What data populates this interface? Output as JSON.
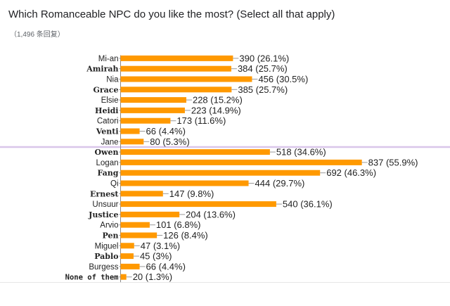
{
  "title": "Which Romanceable NPC do you like the most? (Select all that apply)",
  "response_count": "（1,496 条回复）",
  "colors": {
    "bar": "#ff9900",
    "leader": "#999999",
    "axis": "#888888",
    "divider": "#d9c6ea",
    "bottom_border": "#e6e6e6"
  },
  "chart_data": {
    "type": "bar",
    "orientation": "horizontal",
    "title": "Which Romanceable NPC do you like the most? (Select all that apply)",
    "subtitle": "（1,496 条回复）",
    "categories": [
      "Mi-an",
      "Amirah",
      "Nia",
      "Grace",
      "Elsie",
      "Heidi",
      "Catori",
      "Venti",
      "Jane",
      "Owen",
      "Logan",
      "Fang",
      "Qi",
      "Ernest",
      "Unsuur",
      "Justice",
      "Arvio",
      "Pen",
      "Miguel",
      "Pablo",
      "Burgess",
      "None of them"
    ],
    "values": [
      390,
      384,
      456,
      385,
      228,
      223,
      173,
      66,
      80,
      518,
      837,
      692,
      444,
      147,
      540,
      204,
      101,
      126,
      47,
      45,
      66,
      20
    ],
    "labels": [
      "390 (26.1%)",
      "384 (25.7%)",
      "456 (30.5%)",
      "385 (25.7%)",
      "228 (15.2%)",
      "223 (14.9%)",
      "173 (11.6%)",
      "66 (4.4%)",
      "80 (5.3%)",
      "518 (34.6%)",
      "837 (55.9%)",
      "692 (46.3%)",
      "444 (29.7%)",
      "147 (9.8%)",
      "540 (36.1%)",
      "204 (13.6%)",
      "101 (6.8%)",
      "126 (8.4%)",
      "47 (3.1%)",
      "45 (3%)",
      "66 (4.4%)",
      "20 (1.3%)"
    ],
    "xlim": [
      0,
      1000
    ],
    "grid": false,
    "legend": "none"
  }
}
